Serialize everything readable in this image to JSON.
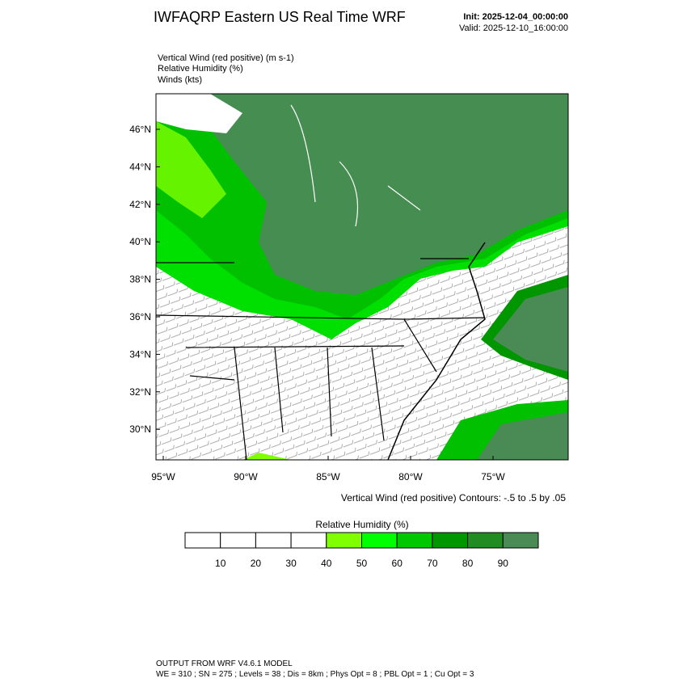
{
  "header": {
    "title": "IWFAQRP Eastern US Real Time WRF",
    "init": "Init: 2025-12-04_00:00:00",
    "valid": "Valid: 2025-12-10_16:00:00"
  },
  "fields": [
    "Vertical Wind (red positive)   (m s-1)",
    "Relative Humidity   (%)",
    "Winds   (kts)"
  ],
  "map": {
    "lat_labels": [
      "46°N",
      "44°N",
      "42°N",
      "40°N",
      "38°N",
      "36°N",
      "34°N",
      "32°N",
      "30°N"
    ],
    "lon_labels": [
      "95°W",
      "90°W",
      "85°W",
      "80°W",
      "75°W"
    ],
    "contour_note": "Vertical Wind (red positive) Contours: -.5 to .5 by .05"
  },
  "colorbar": {
    "title": "Relative Humidity  (%)",
    "labels": [
      "10",
      "20",
      "30",
      "40",
      "50",
      "60",
      "70",
      "80",
      "90"
    ],
    "colors": [
      "#ffffff",
      "#ffffff",
      "#ffffff",
      "#ffffff",
      "#80ff00",
      "#00ff00",
      "#00c800",
      "#009600",
      "#228b22",
      "#4a8a55"
    ]
  },
  "footer": {
    "line1": "OUTPUT FROM WRF V4.6.1 MODEL",
    "line2": "WE = 310 ; SN = 275 ; Levels = 38 ; Dis = 8km ; Phys Opt = 8 ; PBL Opt = 1 ; Cu Opt = 3"
  }
}
